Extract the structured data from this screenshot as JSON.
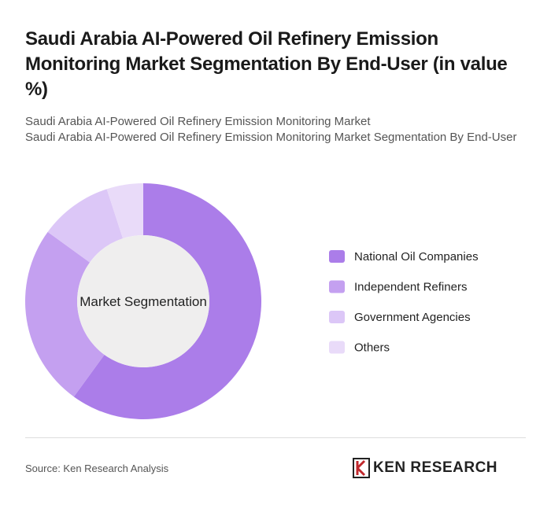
{
  "chart_data": {
    "type": "donut",
    "title": "Saudi Arabia AI-Powered Oil Refinery Emission Monitoring Market Segmentation By End-User (in value %)",
    "subtitle": [
      "Saudi Arabia AI-Powered Oil Refinery Emission Monitoring Market",
      "Saudi Arabia AI-Powered Oil Refinery Emission Monitoring Market Segmentation By End-User"
    ],
    "center_label": "Market Segmentation",
    "categories": [
      "National Oil Companies",
      "Independent Refiners",
      "Government Agencies",
      "Others"
    ],
    "values": [
      60,
      25,
      10,
      5
    ],
    "colors": [
      "#ab7de9",
      "#c4a0f0",
      "#dcc7f7",
      "#e9dbf9"
    ],
    "source": "Source: Ken Research Analysis",
    "brand": "KEN RESEARCH"
  }
}
